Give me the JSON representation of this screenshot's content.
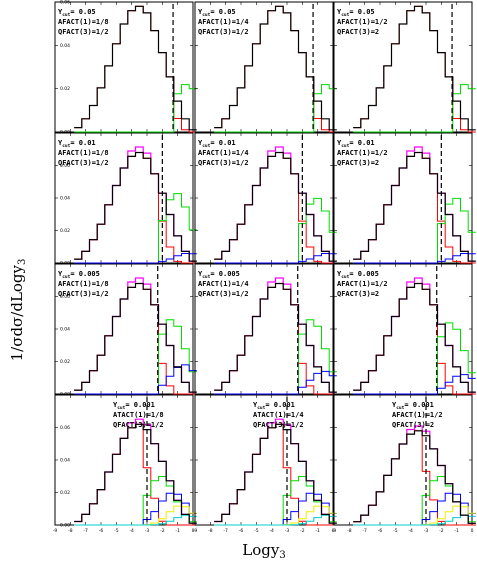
{
  "figure": {
    "ylabel": "1/σdσ/dLogy",
    "ylabel_sub": "3",
    "xlabel": "Logy",
    "xlabel_sub": "3"
  },
  "colors": {
    "total": "#000000",
    "magenta": "#ff00ff",
    "red": "#ff0000",
    "green": "#00dd00",
    "blue": "#0000ff",
    "yellow": "#eeee00",
    "cyan": "#00cccc",
    "cut_line": "#000000"
  },
  "chart_data": {
    "type": "line",
    "layout": "4x3 grid",
    "ylim_top_row": [
      0,
      0.06
    ],
    "ylim_rows_2_4": [
      0,
      0.08
    ],
    "xlim": [
      -9,
      0
    ],
    "x_ticks": [
      "-9",
      "-8",
      "-7",
      "-6",
      "-5",
      "-4",
      "-3",
      "-2",
      "-1",
      "0"
    ],
    "y_ticks_top_row": [
      "0.00",
      "0.02",
      "0.04",
      "0.06"
    ],
    "y_ticks_other_rows": [
      "0.00",
      "0.02",
      "0.04",
      "0.06"
    ],
    "rows": [
      {
        "ycut_label": "Y",
        "ycut_sub": "cut",
        "ycut_value": "= 0.05",
        "ycut_log": -1.3
      },
      {
        "ycut_label": "Y",
        "ycut_sub": "cut",
        "ycut_value": "= 0.01",
        "ycut_log": -2.0
      },
      {
        "ycut_label": "Y",
        "ycut_sub": "cut",
        "ycut_value": "= 0.005",
        "ycut_log": -2.3
      },
      {
        "ycut_label": "Y",
        "ycut_sub": "cut",
        "ycut_value": "= 0.001",
        "ycut_log": -3.0
      }
    ],
    "columns": [
      {
        "line2": "AFACT(1)=1/8",
        "line3": "QFACT(3)=1/2"
      },
      {
        "line2": "AFACT(1)=1/4",
        "line3": "QFACT(3)=1/2"
      },
      {
        "line2": "AFACT(1)=1/2",
        "line3": "QFACT(3)=2"
      }
    ],
    "bottom_row_line2": [
      "ATACT(1)=1/8",
      "ATACT(1)=1/4",
      "AFACT(1)=1/2"
    ],
    "x": [
      -7.5,
      -7.0,
      -6.5,
      -6.0,
      -5.5,
      -5.0,
      -4.5,
      -4.0,
      -3.5,
      -3.0,
      -2.5,
      -2.0,
      -1.5,
      -1.0,
      -0.5,
      0.0
    ],
    "series": [
      {
        "name": "",
        "color_key": "total",
        "values": [
          0.002,
          0.006,
          0.012,
          0.02,
          0.03,
          0.04,
          0.049,
          0.055,
          0.057,
          0.054,
          0.046,
          0.036,
          0.025,
          0.014,
          0.006,
          0.001
        ]
      }
    ],
    "panels": [
      {
        "row": 0,
        "col": 0,
        "peak": 0.058,
        "green_peak": 0.022,
        "blue_peak": 0.0,
        "has_magenta": false
      },
      {
        "row": 0,
        "col": 1,
        "peak": 0.058,
        "green_peak": 0.022,
        "blue_peak": 0.0,
        "has_magenta": false
      },
      {
        "row": 0,
        "col": 2,
        "peak": 0.058,
        "green_peak": 0.022,
        "blue_peak": 0.0,
        "has_magenta": false
      },
      {
        "row": 1,
        "col": 0,
        "peak": 0.068,
        "green_peak": 0.043,
        "blue_peak": 0.006,
        "has_magenta": true
      },
      {
        "row": 1,
        "col": 1,
        "peak": 0.068,
        "green_peak": 0.04,
        "blue_peak": 0.006,
        "has_magenta": true
      },
      {
        "row": 1,
        "col": 2,
        "peak": 0.068,
        "green_peak": 0.04,
        "blue_peak": 0.006,
        "has_magenta": true
      },
      {
        "row": 2,
        "col": 0,
        "peak": 0.068,
        "green_peak": 0.046,
        "blue_peak": 0.018,
        "has_magenta": true
      },
      {
        "row": 2,
        "col": 1,
        "peak": 0.068,
        "green_peak": 0.046,
        "blue_peak": 0.014,
        "has_magenta": true
      },
      {
        "row": 2,
        "col": 2,
        "peak": 0.068,
        "green_peak": 0.044,
        "blue_peak": 0.012,
        "has_magenta": true
      },
      {
        "row": 3,
        "col": 0,
        "peak": 0.062,
        "green_peak": 0.03,
        "blue_peak": 0.02,
        "has_magenta": true
      },
      {
        "row": 3,
        "col": 1,
        "peak": 0.062,
        "green_peak": 0.03,
        "blue_peak": 0.02,
        "has_magenta": true
      },
      {
        "row": 3,
        "col": 2,
        "peak": 0.058,
        "green_peak": 0.03,
        "blue_peak": 0.02,
        "has_magenta": true
      }
    ]
  }
}
